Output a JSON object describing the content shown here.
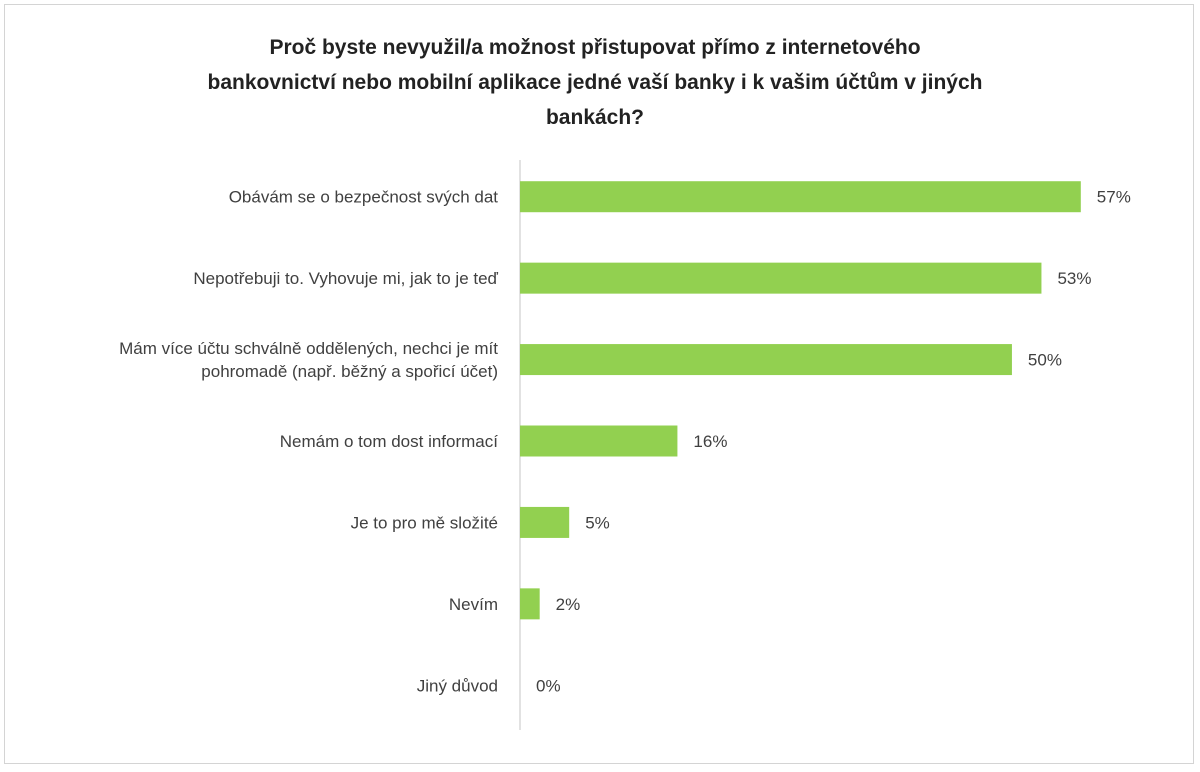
{
  "title": {
    "lines": [
      "Proč byste nevyužil/a možnost přistupovat přímo z internetového",
      "bankovnictví nebo mobilní aplikace jedné vaší banky i k vašim účtům v jiných",
      "bankách?"
    ]
  },
  "chart_data": {
    "type": "bar",
    "orientation": "horizontal",
    "title": "Proč byste nevyužil/a možnost přistupovat přímo z internetového bankovnictví nebo mobilní aplikace jedné vaší banky i k vašim účtům v jiných bankách?",
    "categories": [
      [
        "Obávám se o bezpečnost svých dat"
      ],
      [
        "Nepotřebuji to. Vyhovuje mi, jak to je teď"
      ],
      [
        "Mám více účtu schválně oddělených, nechci je mít",
        "pohromadě (např. běžný a spořicí účet)"
      ],
      [
        "Nemám o tom dost informací"
      ],
      [
        "Je to pro mě složité"
      ],
      [
        "Nevím"
      ],
      [
        "Jiný důvod"
      ]
    ],
    "values": [
      57,
      53,
      50,
      16,
      5,
      2,
      0
    ],
    "value_labels": [
      "57%",
      "53%",
      "50%",
      "16%",
      "5%",
      "2%",
      "0%"
    ],
    "unit": "%",
    "xlim": [
      0,
      62
    ],
    "grid": false,
    "legend": "none",
    "bar_color": "#92d050",
    "axis_color": "#d9d9d9"
  }
}
